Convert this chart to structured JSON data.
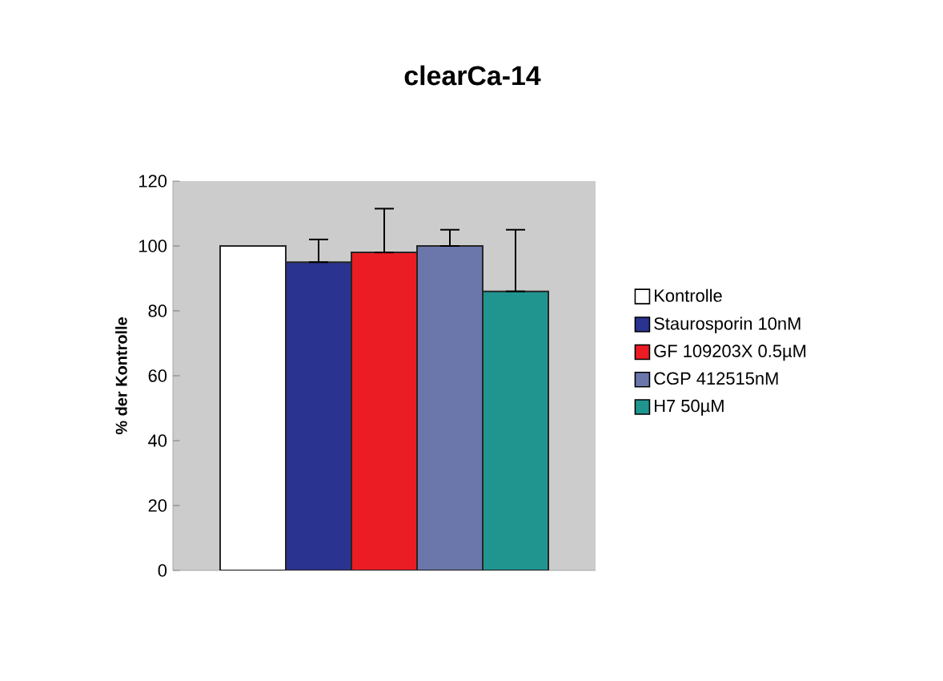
{
  "chart_data": {
    "type": "bar",
    "title": "clearCa-14",
    "ylabel": "% der Kontrolle",
    "categories": [
      null
    ],
    "series": [
      {
        "name": "Kontrolle",
        "color": "#ffffff",
        "values": [
          100
        ]
      },
      {
        "name": "Staurosporin 10nM",
        "color": "#2b3390",
        "values": [
          95
        ],
        "errors": [
          [
            95,
            102
          ]
        ]
      },
      {
        "name": "GF 109203X 0.5µM",
        "color": "#ec1c24",
        "values": [
          98
        ],
        "errors": [
          [
            98,
            111.5
          ]
        ]
      },
      {
        "name": "CGP 412515nM",
        "color": "#6b77ab",
        "values": [
          100
        ],
        "errors": [
          [
            100,
            105
          ]
        ]
      },
      {
        "name": "H7 50µM",
        "color": "#20958f",
        "values": [
          86
        ],
        "errors": [
          [
            86,
            105
          ]
        ]
      }
    ],
    "ylim": [
      0,
      120
    ],
    "yticks": [
      0,
      20,
      40,
      60,
      80,
      100,
      120
    ],
    "grid": false,
    "legend": "right"
  }
}
